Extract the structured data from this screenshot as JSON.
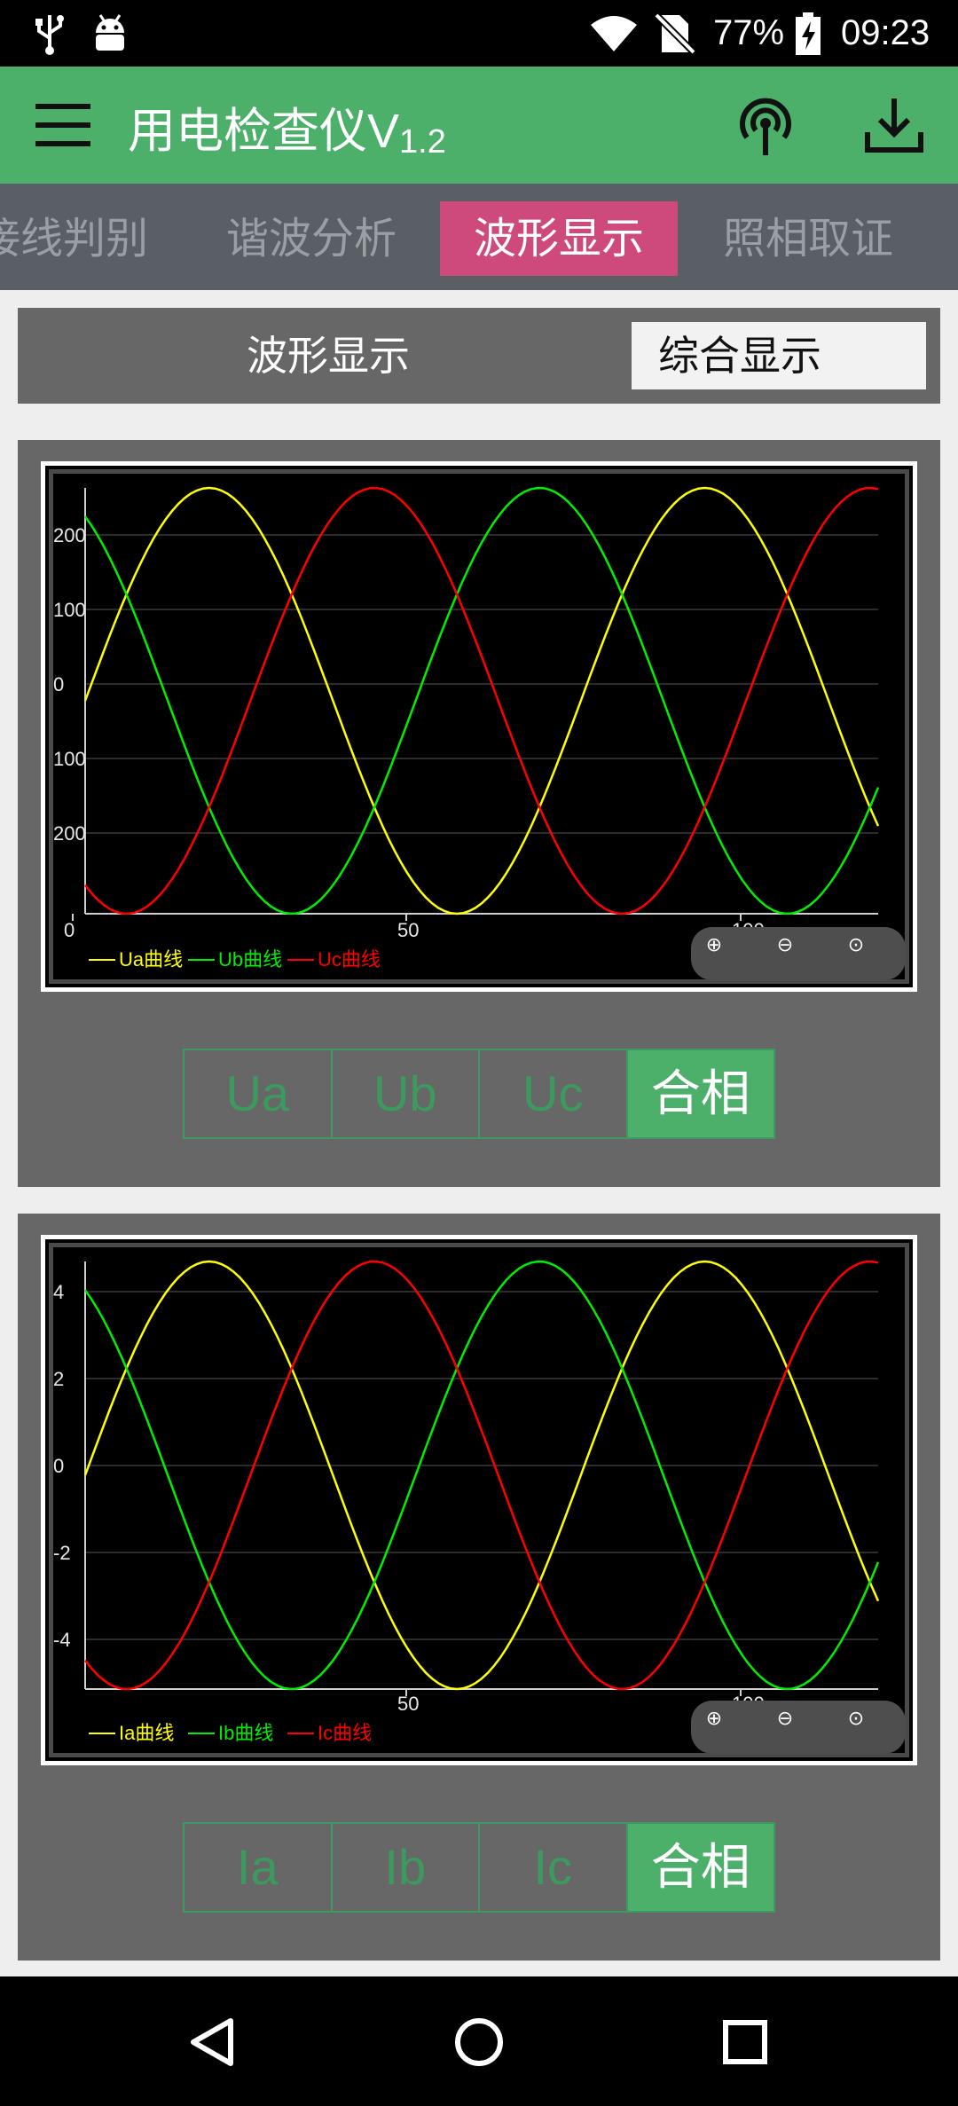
{
  "status": {
    "battery": "77%",
    "time": "09:23"
  },
  "app": {
    "title": "用电检查仪V",
    "version": "1.2"
  },
  "tabs": [
    {
      "label": "接线判别",
      "active": false
    },
    {
      "label": "谐波分析",
      "active": false
    },
    {
      "label": "波形显示",
      "active": true
    },
    {
      "label": "照相取证",
      "active": false
    }
  ],
  "mode": {
    "label": "波形显示",
    "button": "综合显示"
  },
  "voltage_panel": {
    "segments": [
      "Ua",
      "Ub",
      "Uc",
      "合相"
    ],
    "selected": "合相"
  },
  "current_panel": {
    "segments": [
      "Ia",
      "Ib",
      "Ic",
      "合相"
    ],
    "selected": "合相"
  },
  "chart_data": [
    {
      "type": "line",
      "y_ticks": [
        "200",
        "100",
        "0",
        "100",
        "200"
      ],
      "x_ticks": [
        "0",
        "50",
        "100"
      ],
      "xlim": [
        0,
        128
      ],
      "ylim": [
        -280,
        280
      ],
      "grid": true,
      "legend": "bottom-left",
      "series": [
        {
          "name": "Ua曲线",
          "color": "#ffff00",
          "amplitude": 280,
          "phase_deg": 0
        },
        {
          "name": "Ub曲线",
          "color": "#00ee00",
          "amplitude": 280,
          "phase_deg": 120
        },
        {
          "name": "Uc曲线",
          "color": "#ff0000",
          "amplitude": 280,
          "phase_deg": -120
        }
      ]
    },
    {
      "type": "line",
      "y_ticks": [
        "4",
        "2",
        "0",
        "-2",
        "-4"
      ],
      "x_ticks": [
        "50",
        "100"
      ],
      "xlim": [
        0,
        128
      ],
      "ylim": [
        -4.9,
        4.9
      ],
      "grid": true,
      "legend": "bottom-left",
      "series": [
        {
          "name": "Ia曲线",
          "color": "#ffff00",
          "amplitude": 4.9,
          "phase_deg": 0
        },
        {
          "name": "Ib曲线",
          "color": "#00ee00",
          "amplitude": 4.9,
          "phase_deg": 120
        },
        {
          "name": "Ic曲线",
          "color": "#ff0000",
          "amplitude": 4.9,
          "phase_deg": -120
        }
      ]
    }
  ]
}
